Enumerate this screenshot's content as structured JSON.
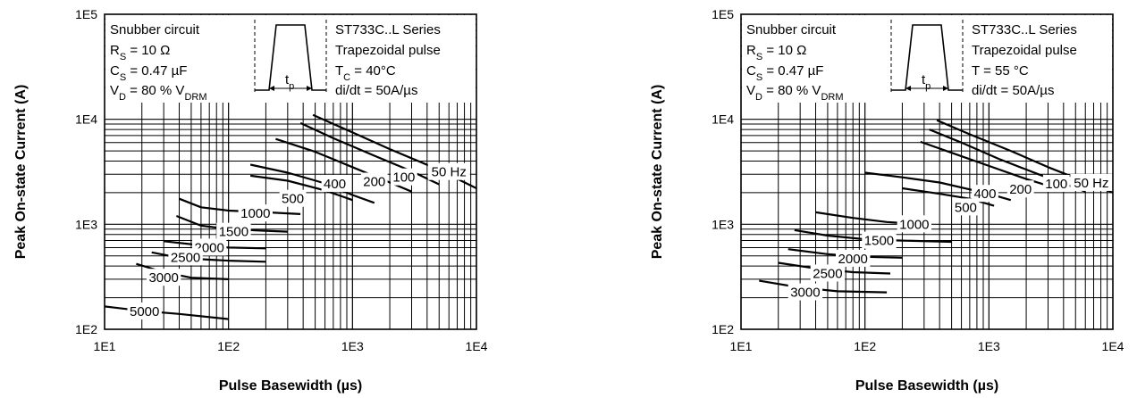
{
  "chart_data": [
    {
      "type": "line",
      "x_scale": "log",
      "y_scale": "log",
      "xlim": [
        10,
        10000
      ],
      "ylim": [
        100,
        100000
      ],
      "xlabel": "Pulse Basewidth (µs)",
      "ylabel": "Peak On-state Current (A)",
      "x_ticks": [
        "1E1",
        "1E2",
        "1E3",
        "1E4"
      ],
      "y_ticks": [
        "1E2",
        "1E3",
        "1E4",
        "1E5"
      ],
      "grid": true,
      "conditions": {
        "circuit": "Snubber circuit",
        "rs": "R",
        "rs_sub": "S",
        "rs_val": " = 10 Ω",
        "cs": "C",
        "cs_sub": "S",
        "cs_val": " = 0.47 µF",
        "vd": "V",
        "vd_sub": "D",
        "vd_val": " = 80 % V",
        "vd_sub2": "DRM",
        "series_name": "ST733C..L Series",
        "pulse": "Trapezoidal pulse",
        "temp_a": "T",
        "temp_sub": "C",
        "temp_val": "   = 40°C",
        "didt": "di/dt = 50A/µs",
        "tp": "t",
        "tp_sub": "p"
      },
      "series": [
        {
          "name": "50 Hz",
          "x": [
            480,
            1000,
            2000,
            5000,
            10000
          ],
          "y": [
            11000,
            7500,
            5200,
            3300,
            2200
          ]
        },
        {
          "name": "100",
          "x": [
            380,
            700,
            1500,
            3000,
            5000
          ],
          "y": [
            9200,
            6600,
            4500,
            3200,
            2400
          ]
        },
        {
          "name": "200",
          "x": [
            240,
            500,
            1000,
            2000,
            3000
          ],
          "y": [
            6500,
            4900,
            3500,
            2500,
            2050
          ]
        },
        {
          "name": "400",
          "x": [
            150,
            300,
            600,
            1000,
            1500
          ],
          "y": [
            3700,
            3100,
            2450,
            1900,
            1600
          ]
        },
        {
          "name": "500",
          "x": [
            150,
            300,
            600,
            1000
          ],
          "y": [
            2900,
            2600,
            2100,
            1700
          ]
        },
        {
          "name": "1000",
          "x": [
            40,
            60,
            100,
            200,
            380
          ],
          "y": [
            1750,
            1450,
            1350,
            1300,
            1250
          ]
        },
        {
          "name": "1500",
          "x": [
            38,
            60,
            100,
            180,
            300
          ],
          "y": [
            1200,
            970,
            900,
            870,
            850
          ]
        },
        {
          "name": "2000",
          "x": [
            30,
            60,
            100,
            200
          ],
          "y": [
            690,
            630,
            600,
            590
          ]
        },
        {
          "name": "2500",
          "x": [
            24,
            40,
            70,
            100,
            200
          ],
          "y": [
            540,
            480,
            460,
            450,
            440
          ]
        },
        {
          "name": "3000",
          "x": [
            18,
            30,
            50,
            100
          ],
          "y": [
            420,
            350,
            310,
            300
          ]
        },
        {
          "name": "5000",
          "x": [
            10,
            20,
            40,
            100
          ],
          "y": [
            165,
            150,
            140,
            125
          ]
        }
      ],
      "labels": [
        {
          "text": "50 Hz",
          "x": 6000,
          "y": 3150
        },
        {
          "text": "100",
          "x": 2600,
          "y": 2800
        },
        {
          "text": "200",
          "x": 1500,
          "y": 2550
        },
        {
          "text": "400",
          "x": 720,
          "y": 2430
        },
        {
          "text": "500",
          "x": 330,
          "y": 1750
        },
        {
          "text": "1000",
          "x": 165,
          "y": 1270
        },
        {
          "text": "1500",
          "x": 110,
          "y": 850
        },
        {
          "text": "2000",
          "x": 70,
          "y": 600
        },
        {
          "text": "2500",
          "x": 45,
          "y": 485
        },
        {
          "text": "3000",
          "x": 30,
          "y": 310
        },
        {
          "text": "5000",
          "x": 21,
          "y": 148
        }
      ]
    },
    {
      "type": "line",
      "x_scale": "log",
      "y_scale": "log",
      "xlim": [
        10,
        10000
      ],
      "ylim": [
        100,
        100000
      ],
      "xlabel": "Pulse Basewidth (µs)",
      "ylabel": "Peak On-state Current (A)",
      "x_ticks": [
        "1E1",
        "1E2",
        "1E3",
        "1E4"
      ],
      "y_ticks": [
        "1E2",
        "1E3",
        "1E4",
        "1E5"
      ],
      "grid": true,
      "conditions": {
        "circuit": "Snubber circuit",
        "rs": "R",
        "rs_sub": "S",
        "rs_val": " = 10 Ω",
        "cs": "C",
        "cs_sub": "S",
        "cs_val": " = 0.47 µF",
        "vd": "V",
        "vd_sub": "D",
        "vd_val": " = 80 % V",
        "vd_sub2": "DRM",
        "series_name": "ST733C..L Series",
        "pulse": "Trapezoidal pulse",
        "temp_a": "T",
        "temp_sub": "",
        "temp_val": "   = 55 °C",
        "didt": "di/dt = 50A/µs",
        "tp": "t",
        "tp_sub": "p"
      },
      "series": [
        {
          "name": "50 Hz",
          "x": [
            380,
            700,
            1500,
            3000,
            10000
          ],
          "y": [
            9800,
            7200,
            5000,
            3500,
            2000
          ]
        },
        {
          "name": "100",
          "x": [
            330,
            600,
            1200,
            2500,
            6000
          ],
          "y": [
            8000,
            6000,
            4200,
            3000,
            2050
          ]
        },
        {
          "name": "200",
          "x": [
            280,
            500,
            1000,
            2000,
            4000
          ],
          "y": [
            6100,
            4800,
            3600,
            2700,
            2100
          ]
        },
        {
          "name": "400",
          "x": [
            100,
            200,
            400,
            1000,
            1500
          ],
          "y": [
            3100,
            2800,
            2500,
            1950,
            1700
          ]
        },
        {
          "name": "500",
          "x": [
            200,
            400,
            700,
            1100
          ],
          "y": [
            2200,
            1950,
            1750,
            1500
          ]
        },
        {
          "name": "1000",
          "x": [
            40,
            80,
            150,
            300
          ],
          "y": [
            1300,
            1150,
            1050,
            1000
          ]
        },
        {
          "name": "1500",
          "x": [
            27,
            50,
            100,
            200,
            500
          ],
          "y": [
            880,
            780,
            720,
            700,
            680
          ]
        },
        {
          "name": "2000",
          "x": [
            24,
            50,
            100,
            200
          ],
          "y": [
            580,
            520,
            490,
            480
          ]
        },
        {
          "name": "2500",
          "x": [
            20,
            40,
            80,
            160
          ],
          "y": [
            430,
            380,
            350,
            340
          ]
        },
        {
          "name": "3000",
          "x": [
            14,
            30,
            60,
            150
          ],
          "y": [
            290,
            250,
            230,
            225
          ]
        }
      ],
      "labels": [
        {
          "text": "50 Hz",
          "x": 6700,
          "y": 2480
        },
        {
          "text": "100",
          "x": 3500,
          "y": 2430
        },
        {
          "text": "200",
          "x": 1800,
          "y": 2150
        },
        {
          "text": "400",
          "x": 930,
          "y": 1950
        },
        {
          "text": "500",
          "x": 650,
          "y": 1450
        },
        {
          "text": "1000",
          "x": 250,
          "y": 1000
        },
        {
          "text": "1500",
          "x": 130,
          "y": 700
        },
        {
          "text": "2000",
          "x": 80,
          "y": 470
        },
        {
          "text": "2500",
          "x": 50,
          "y": 340
        },
        {
          "text": "3000",
          "x": 33,
          "y": 225
        }
      ]
    }
  ]
}
